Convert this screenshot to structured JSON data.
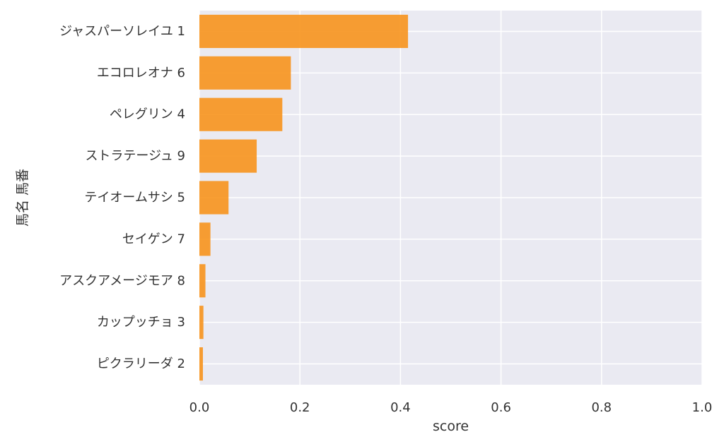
{
  "chart_data": {
    "type": "bar",
    "orientation": "horizontal",
    "xlabel": "score",
    "ylabel": "馬名 馬番",
    "xlim": [
      0,
      1.0
    ],
    "x_ticks": [
      "0.0",
      "0.2",
      "0.4",
      "0.6",
      "0.8",
      "1.0"
    ],
    "categories": [
      "ジャスパーソレイユ 1",
      "エコロレオナ 6",
      "ペレグリン 4",
      "ストラテージュ 9",
      "テイオームサシ 5",
      "セイゲン 7",
      "アスクアメージモア 8",
      "カップッチョ 3",
      "ピクラリーダ 2"
    ],
    "values": [
      0.415,
      0.182,
      0.165,
      0.114,
      0.058,
      0.022,
      0.012,
      0.008,
      0.007
    ],
    "bar_color": "#f7941d",
    "plot_background": "#eaeaf2",
    "grid": true,
    "grid_color": "#ffffff"
  }
}
